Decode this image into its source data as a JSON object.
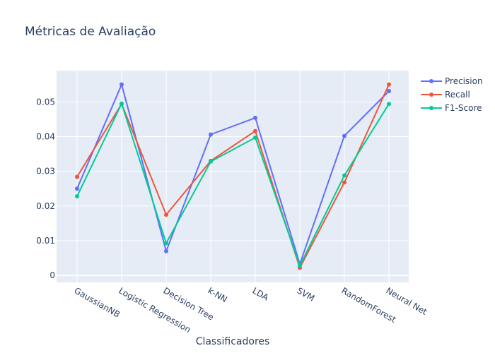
{
  "chart_data": {
    "type": "line",
    "title": "Métricas de Avaliação",
    "xlabel": "Classificadores",
    "ylabel": "",
    "categories": [
      "GaussianNB",
      "Logistic Regression",
      "Decision Tree",
      "k-NN",
      "LDA",
      "SVM",
      "RandomForest",
      "Neural Net"
    ],
    "ylim": [
      -0.002,
      0.059
    ],
    "yticks": [
      0,
      0.01,
      0.02,
      0.03,
      0.04,
      0.05
    ],
    "ytick_labels": [
      "0",
      "0.01",
      "0.02",
      "0.03",
      "0.04",
      "0.05"
    ],
    "grid": true,
    "legend_position": "top-right",
    "series": [
      {
        "name": "Precision",
        "color": "#636efa",
        "values": [
          0.025,
          0.055,
          0.007,
          0.0406,
          0.0454,
          0.0033,
          0.0402,
          0.0531
        ]
      },
      {
        "name": "Recall",
        "color": "#ef553b",
        "values": [
          0.0284,
          0.0494,
          0.0175,
          0.033,
          0.0416,
          0.0022,
          0.0268,
          0.055
        ]
      },
      {
        "name": "F1-Score",
        "color": "#00cc96",
        "values": [
          0.0228,
          0.0495,
          0.0093,
          0.0328,
          0.0397,
          0.0028,
          0.0288,
          0.0494
        ]
      }
    ]
  }
}
